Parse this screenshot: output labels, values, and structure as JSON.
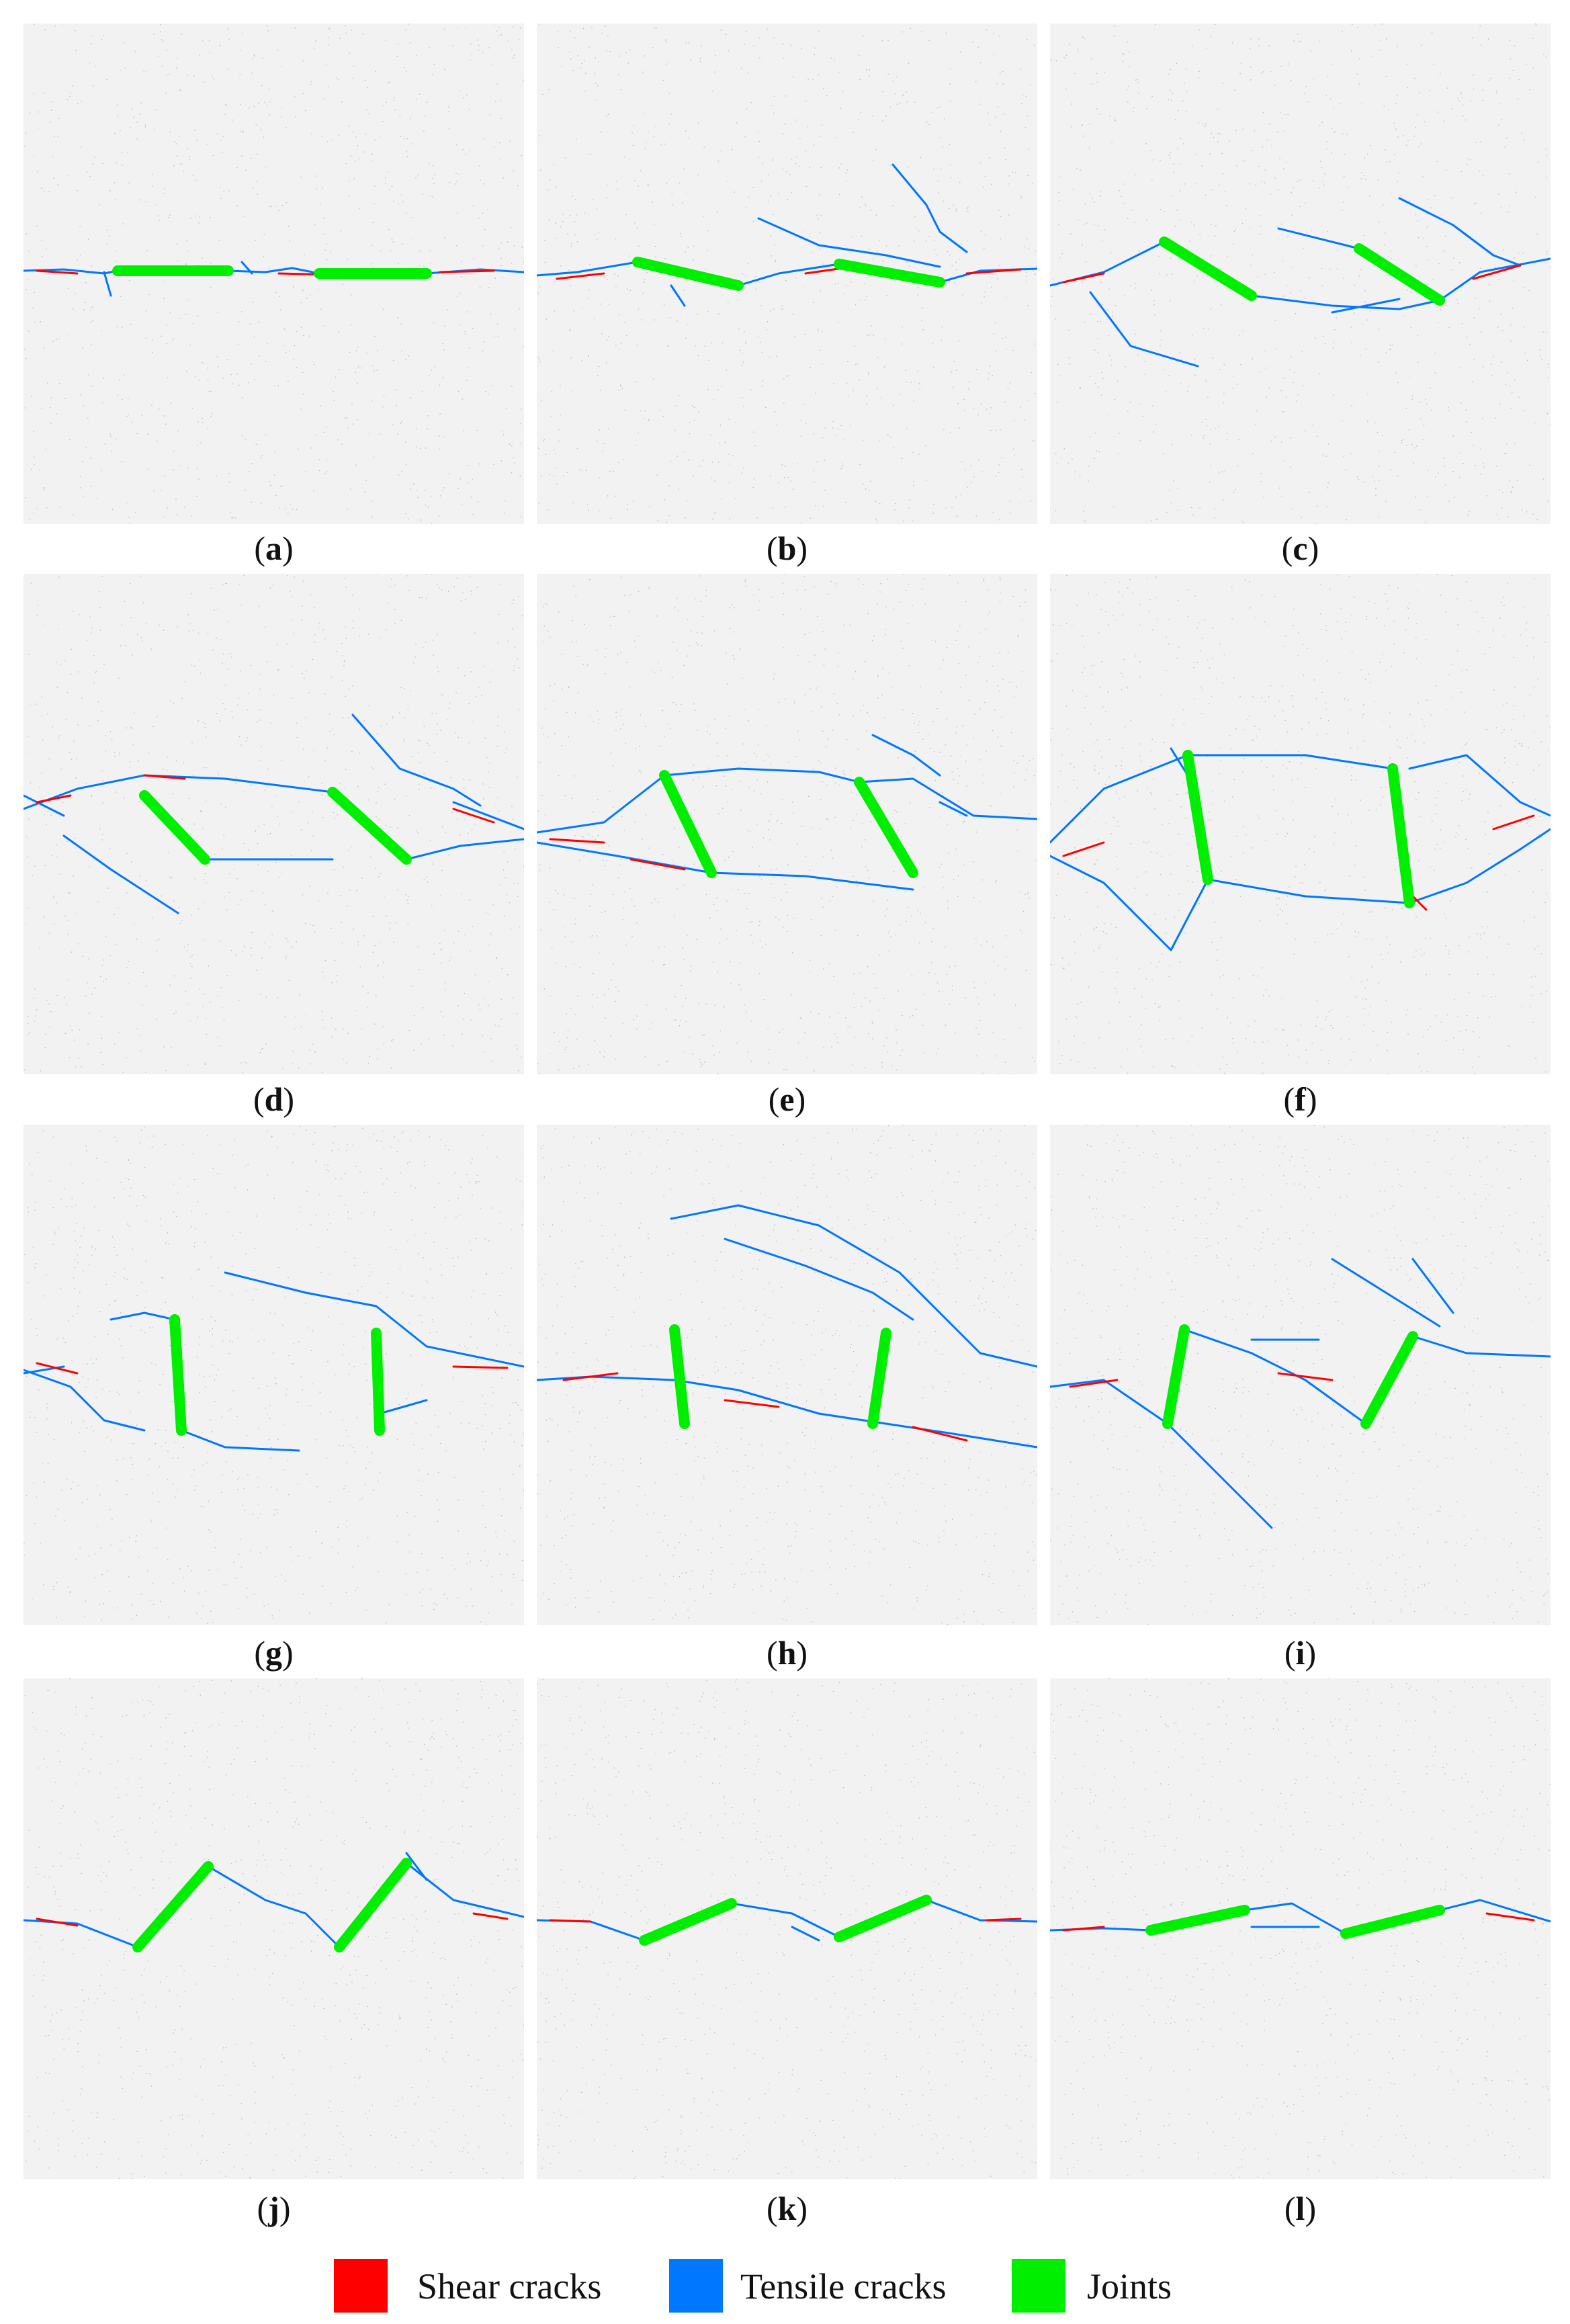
{
  "panels": [
    {
      "label": "a"
    },
    {
      "label": "b"
    },
    {
      "label": "c"
    },
    {
      "label": "d"
    },
    {
      "label": "e"
    },
    {
      "label": "f"
    },
    {
      "label": "g"
    },
    {
      "label": "h"
    },
    {
      "label": "i"
    },
    {
      "label": "j"
    },
    {
      "label": "k"
    },
    {
      "label": "l"
    }
  ],
  "legend": {
    "shear": {
      "label": "Shear cracks",
      "color": "#ff0000"
    },
    "tensile": {
      "label": "Tensile cracks",
      "color": "#0077ff"
    },
    "joints": {
      "label": "Joints",
      "color": "#00ee00"
    }
  },
  "colors": {
    "background": "#f2f2f2",
    "particle": "#bdbdbd"
  }
}
